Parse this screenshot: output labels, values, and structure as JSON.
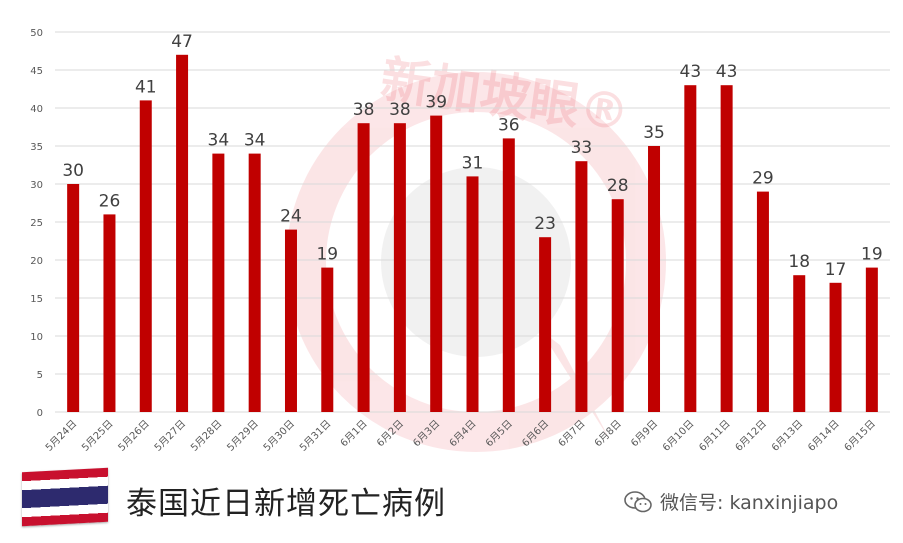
{
  "chart_data": {
    "type": "bar",
    "categories": [
      "5月24日",
      "5月25日",
      "5月26日",
      "5月27日",
      "5月28日",
      "5月29日",
      "5月30日",
      "5月31日",
      "6月1日",
      "6月2日",
      "6月3日",
      "6月4日",
      "6月5日",
      "6月6日",
      "6月7日",
      "6月8日",
      "6月9日",
      "6月10日",
      "6月11日",
      "6月12日",
      "6月13日",
      "6月14日",
      "6月15日"
    ],
    "values": [
      30,
      26,
      41,
      47,
      34,
      34,
      24,
      19,
      38,
      38,
      39,
      31,
      36,
      23,
      33,
      28,
      35,
      43,
      43,
      29,
      18,
      17,
      19
    ],
    "ylim": [
      0,
      50
    ],
    "yticks": [
      0,
      5,
      10,
      15,
      20,
      25,
      30,
      35,
      40,
      45,
      50
    ],
    "grid": true,
    "data_labels": true,
    "bar_color": "#c00000"
  },
  "caption": "泰国近日新增死亡病例",
  "watermark": "新加坡眼®",
  "wechat": {
    "icon": "wechat-icon",
    "label": "微信号: kanxinjiapo"
  },
  "colors": {
    "bar": "#c00000",
    "grid": "#d9d9d9",
    "watermark": "#e8404a"
  }
}
